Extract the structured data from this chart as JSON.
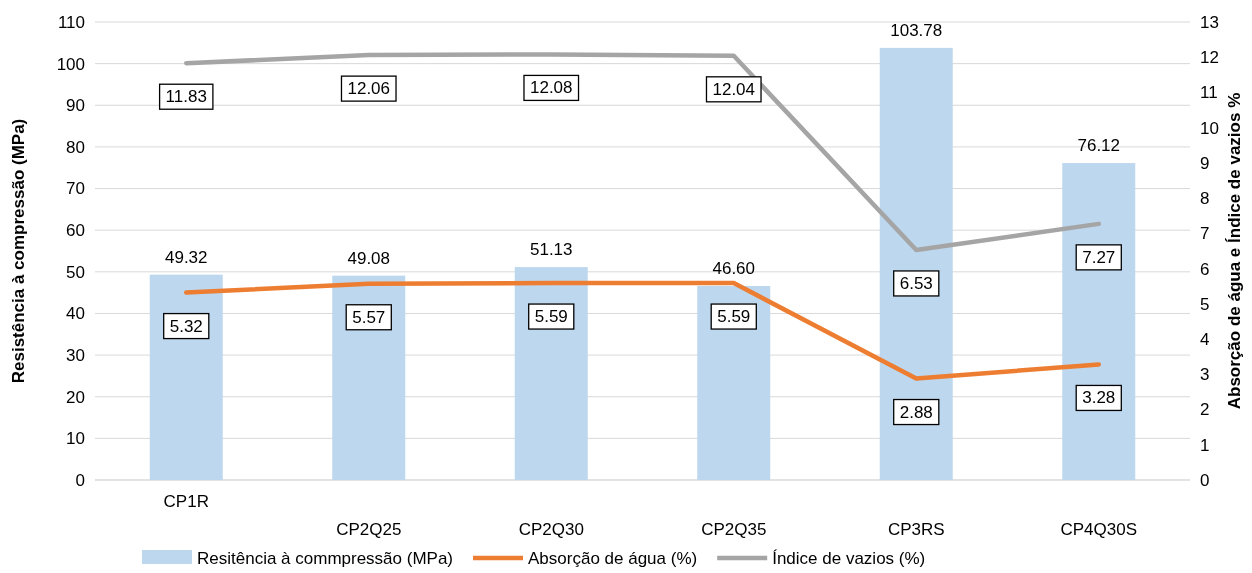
{
  "chart_data": {
    "type": "bar",
    "ylabel": "Resistência à compressão  (MPa)",
    "y2label": "Absorção de água  e Índice de vazios %",
    "categories": [
      "CP1R",
      "CP2Q25",
      "CP2Q30",
      "CP2Q35",
      "CP3RS",
      "CP4Q30S"
    ],
    "series": [
      {
        "name": "Resitência à commpressão (MPa)",
        "color": "#bdd7ee",
        "values": [
          49.32,
          49.08,
          51.13,
          46.6,
          103.78,
          76.12
        ],
        "value_labels": [
          "49.32",
          "49.08",
          "51.13",
          "46.60",
          "103.78",
          "76.12"
        ]
      },
      {
        "name": "Absorção de água (%)",
        "type": "line",
        "axis": "y2",
        "color": "#ed7d31",
        "values": [
          5.32,
          5.57,
          5.59,
          5.59,
          2.88,
          3.28
        ],
        "value_labels": [
          "5.32",
          "5.57",
          "5.59",
          "5.59",
          "2.88",
          "3.28"
        ]
      },
      {
        "name": "Índice de vazios (%)",
        "type": "line",
        "axis": "y2",
        "color": "#a5a5a5",
        "values": [
          11.83,
          12.06,
          12.08,
          12.04,
          6.53,
          7.27
        ],
        "value_labels": [
          "11.83",
          "12.06",
          "12.08",
          "12.04",
          "6.53",
          "7.27"
        ]
      }
    ],
    "ylim": [
      0,
      110
    ],
    "yticks": [
      0,
      10,
      20,
      30,
      40,
      50,
      60,
      70,
      80,
      90,
      100,
      110
    ],
    "y2lim": [
      0,
      13
    ],
    "y2ticks": [
      0,
      1,
      2,
      3,
      4,
      5,
      6,
      7,
      8,
      9,
      10,
      11,
      12,
      13
    ],
    "grid": "y",
    "legend": "bottom",
    "marker": "none",
    "line_style": "solid"
  }
}
